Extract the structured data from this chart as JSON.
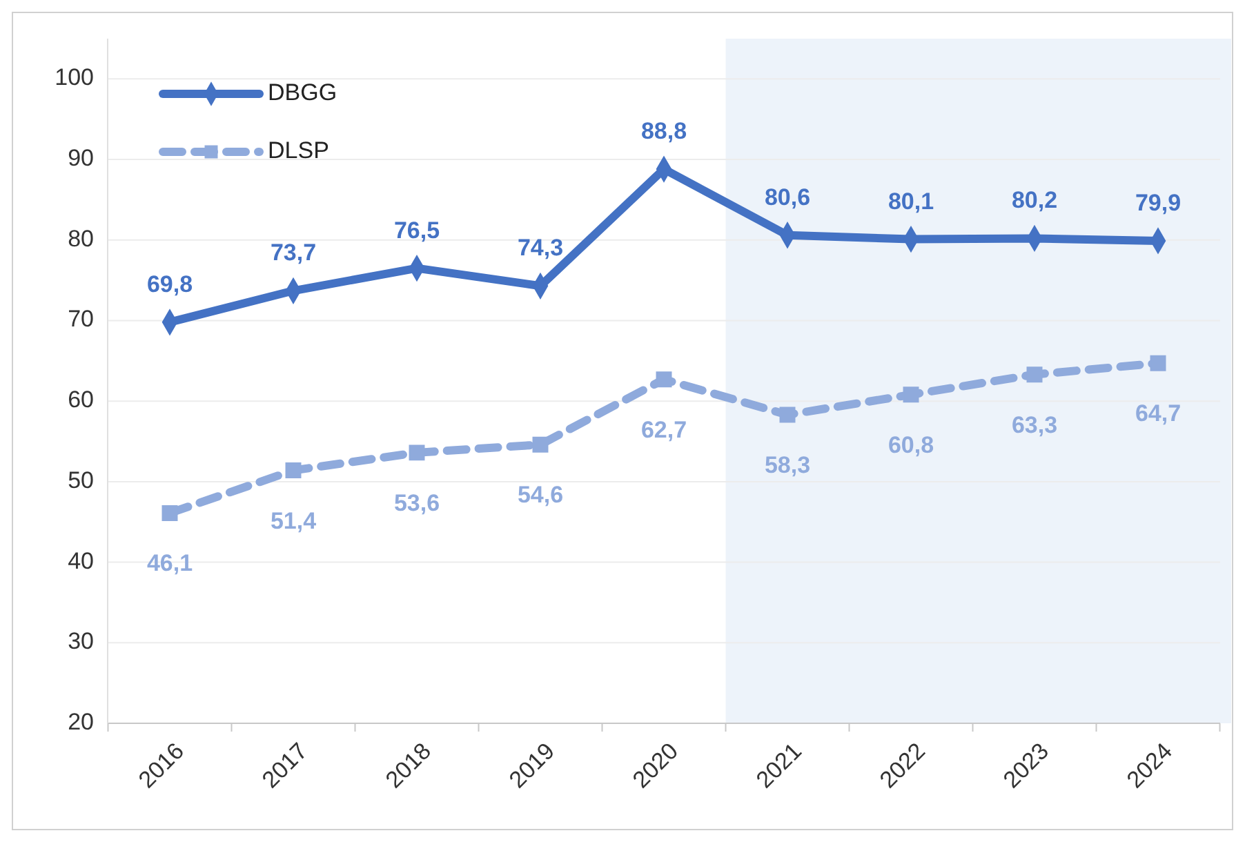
{
  "chart_data": {
    "type": "line",
    "categories": [
      "2016",
      "2017",
      "2018",
      "2019",
      "2020",
      "2021",
      "2022",
      "2023",
      "2024"
    ],
    "series": [
      {
        "name": "DBGG",
        "color": "#4472c4",
        "marker": "diamond",
        "line_style": "solid",
        "values": [
          69.8,
          73.7,
          76.5,
          74.3,
          88.8,
          80.6,
          80.1,
          80.2,
          79.9
        ],
        "value_labels": [
          "69,8",
          "73,7",
          "76,5",
          "74,3",
          "88,8",
          "80,6",
          "80,1",
          "80,2",
          "79,9"
        ]
      },
      {
        "name": "DLSP",
        "color": "#8faadc",
        "marker": "square",
        "line_style": "dashed",
        "values": [
          46.1,
          51.4,
          53.6,
          54.6,
          62.7,
          58.3,
          60.8,
          63.3,
          64.7
        ],
        "value_labels": [
          "46,1",
          "51,4",
          "53,6",
          "54,6",
          "62,7",
          "58,3",
          "60,8",
          "63,3",
          "64,7"
        ]
      }
    ],
    "ylim": [
      20,
      105
    ],
    "yticks": [
      20,
      30,
      40,
      50,
      60,
      70,
      80,
      90,
      100
    ],
    "grid": "y",
    "legend": "top left",
    "bands": [
      {
        "axis": "x",
        "from": "2021",
        "to": "2024",
        "color": "#edf3fa"
      }
    ]
  }
}
